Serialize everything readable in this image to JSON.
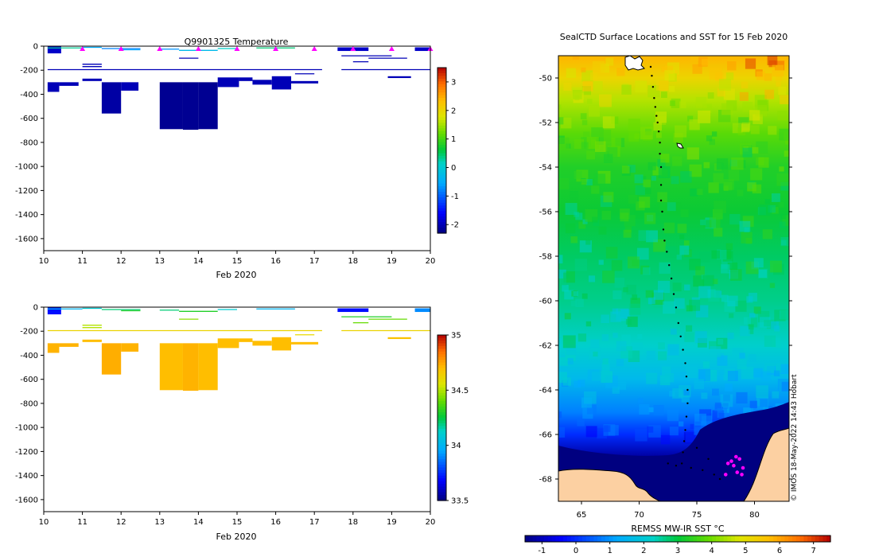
{
  "chart_data": [
    {
      "type": "heatmap",
      "title": "Q9901325  Temperature",
      "xlabel": "Feb 2020",
      "xlim": [
        10,
        20
      ],
      "ylim": [
        -1700,
        0
      ],
      "xticks": [
        10,
        11,
        12,
        13,
        14,
        15,
        16,
        17,
        18,
        19,
        20
      ],
      "yticks": [
        0,
        -200,
        -400,
        -600,
        -800,
        -1000,
        -1200,
        -1400,
        -1600
      ],
      "colorbar": {
        "min": -2.3,
        "max": 3.5,
        "ticks": [
          3,
          2,
          1,
          0,
          -1,
          -2
        ]
      },
      "surface_markers_days": [
        11,
        12,
        13,
        14,
        15,
        16,
        17,
        18,
        19,
        20
      ],
      "profiles": [
        {
          "x0": 10.1,
          "x1": 10.45,
          "top": 0,
          "bottom": -60,
          "value": -1.9
        },
        {
          "x0": 10.1,
          "x1": 10.4,
          "top": -300,
          "bottom": -380,
          "value": -2.0
        },
        {
          "x0": 10.4,
          "x1": 10.9,
          "top": -300,
          "bottom": -330,
          "value": -2.0
        },
        {
          "x0": 11.0,
          "x1": 11.5,
          "top": -270,
          "bottom": -290,
          "value": -2.0
        },
        {
          "x0": 11.5,
          "x1": 12.0,
          "top": -300,
          "bottom": -560,
          "value": -2.1
        },
        {
          "x0": 12.0,
          "x1": 12.45,
          "top": -300,
          "bottom": -370,
          "value": -2.0
        },
        {
          "x0": 13.0,
          "x1": 13.6,
          "top": -300,
          "bottom": -690,
          "value": -2.2
        },
        {
          "x0": 13.6,
          "x1": 14.0,
          "top": -300,
          "bottom": -695,
          "value": -2.2
        },
        {
          "x0": 14.0,
          "x1": 14.5,
          "top": -300,
          "bottom": -690,
          "value": -2.2
        },
        {
          "x0": 14.5,
          "x1": 15.05,
          "top": -260,
          "bottom": -340,
          "value": -2.0
        },
        {
          "x0": 15.05,
          "x1": 15.4,
          "top": -260,
          "bottom": -290,
          "value": -2.0
        },
        {
          "x0": 15.4,
          "x1": 15.9,
          "top": -280,
          "bottom": -320,
          "value": -2.0
        },
        {
          "x0": 15.9,
          "x1": 16.4,
          "top": -250,
          "bottom": -360,
          "value": -2.0
        },
        {
          "x0": 16.4,
          "x1": 17.1,
          "top": -290,
          "bottom": -310,
          "value": -2.0
        },
        {
          "x0": 17.6,
          "x1": 18.4,
          "top": -10,
          "bottom": -40,
          "value": -1.9
        },
        {
          "x0": 18.9,
          "x1": 19.5,
          "top": -250,
          "bottom": -265,
          "value": -2.0
        },
        {
          "x0": 19.6,
          "x1": 20.1,
          "top": -10,
          "bottom": -40,
          "value": -1.9
        }
      ],
      "levels": [
        {
          "x0": 10.1,
          "x1": 11.0,
          "depth": -15,
          "value": 0.3
        },
        {
          "x0": 11.0,
          "x1": 11.5,
          "depth": -10,
          "value": -0.5
        },
        {
          "x0": 11.5,
          "x1": 12.5,
          "depth": -20,
          "value": -0.8
        },
        {
          "x0": 12.0,
          "x1": 12.5,
          "depth": -30,
          "value": -0.6
        },
        {
          "x0": 13.0,
          "x1": 13.5,
          "depth": -25,
          "value": -0.7
        },
        {
          "x0": 13.5,
          "x1": 14.5,
          "depth": -35,
          "value": -0.3
        },
        {
          "x0": 14.5,
          "x1": 15.0,
          "depth": -20,
          "value": 0.1
        },
        {
          "x0": 15.5,
          "x1": 16.5,
          "depth": -15,
          "value": 0.4
        },
        {
          "x0": 11.0,
          "x1": 11.5,
          "depth": -150,
          "value": -2.0
        },
        {
          "x0": 11.0,
          "x1": 11.5,
          "depth": -170,
          "value": -2.0
        },
        {
          "x0": 13.5,
          "x1": 14.0,
          "depth": -100,
          "value": -2.0
        },
        {
          "x0": 16.5,
          "x1": 17.0,
          "depth": -230,
          "value": -2.0
        },
        {
          "x0": 17.7,
          "x1": 19.0,
          "depth": -80,
          "value": -2.0
        },
        {
          "x0": 18.0,
          "x1": 18.4,
          "depth": -130,
          "value": -2.0
        },
        {
          "x0": 18.4,
          "x1": 19.4,
          "depth": -100,
          "value": -2.0
        },
        {
          "x0": 10.1,
          "x1": 17.2,
          "depth": -195,
          "value": -2.0
        },
        {
          "x0": 17.7,
          "x1": 20.1,
          "depth": -195,
          "value": -2.0
        }
      ]
    },
    {
      "type": "heatmap",
      "title": "",
      "xlabel": "Feb 2020",
      "xlim": [
        10,
        20
      ],
      "ylim": [
        -1700,
        0
      ],
      "xticks": [
        10,
        11,
        12,
        13,
        14,
        15,
        16,
        17,
        18,
        19,
        20
      ],
      "yticks": [
        0,
        -200,
        -400,
        -600,
        -800,
        -1000,
        -1200,
        -1400,
        -1600
      ],
      "colorbar": {
        "min": 33.5,
        "max": 35.0,
        "ticks": [
          35,
          34.5,
          34,
          33.5
        ]
      },
      "profiles": [
        {
          "x0": 10.1,
          "x1": 10.45,
          "top": 0,
          "bottom": -60,
          "value": 33.7
        },
        {
          "x0": 10.1,
          "x1": 10.4,
          "top": -300,
          "bottom": -380,
          "value": 34.72
        },
        {
          "x0": 10.4,
          "x1": 10.9,
          "top": -300,
          "bottom": -330,
          "value": 34.72
        },
        {
          "x0": 11.0,
          "x1": 11.5,
          "top": -270,
          "bottom": -290,
          "value": 34.7
        },
        {
          "x0": 11.5,
          "x1": 12.0,
          "top": -300,
          "bottom": -560,
          "value": 34.73
        },
        {
          "x0": 12.0,
          "x1": 12.45,
          "top": -300,
          "bottom": -370,
          "value": 34.72
        },
        {
          "x0": 13.0,
          "x1": 13.6,
          "top": -300,
          "bottom": -690,
          "value": 34.7
        },
        {
          "x0": 13.6,
          "x1": 14.0,
          "top": -300,
          "bottom": -695,
          "value": 34.72
        },
        {
          "x0": 14.0,
          "x1": 14.5,
          "top": -300,
          "bottom": -690,
          "value": 34.7
        },
        {
          "x0": 14.5,
          "x1": 15.05,
          "top": -260,
          "bottom": -340,
          "value": 34.7
        },
        {
          "x0": 15.05,
          "x1": 15.4,
          "top": -260,
          "bottom": -290,
          "value": 34.7
        },
        {
          "x0": 15.4,
          "x1": 15.9,
          "top": -280,
          "bottom": -320,
          "value": 34.7
        },
        {
          "x0": 15.9,
          "x1": 16.4,
          "top": -250,
          "bottom": -360,
          "value": 34.7
        },
        {
          "x0": 16.4,
          "x1": 17.1,
          "top": -290,
          "bottom": -310,
          "value": 34.7
        },
        {
          "x0": 17.6,
          "x1": 18.4,
          "top": -10,
          "bottom": -40,
          "value": 33.7
        },
        {
          "x0": 18.9,
          "x1": 19.5,
          "top": -250,
          "bottom": -265,
          "value": 34.68
        },
        {
          "x0": 19.6,
          "x1": 20.1,
          "top": -10,
          "bottom": -40,
          "value": 33.9
        }
      ],
      "levels": [
        {
          "x0": 10.1,
          "x1": 11.0,
          "depth": -15,
          "value": 34.0
        },
        {
          "x0": 11.0,
          "x1": 11.5,
          "depth": -10,
          "value": 34.1
        },
        {
          "x0": 11.5,
          "x1": 12.5,
          "depth": -20,
          "value": 34.2
        },
        {
          "x0": 12.0,
          "x1": 12.5,
          "depth": -30,
          "value": 34.3
        },
        {
          "x0": 13.0,
          "x1": 13.5,
          "depth": -25,
          "value": 34.2
        },
        {
          "x0": 13.5,
          "x1": 14.5,
          "depth": -35,
          "value": 34.3
        },
        {
          "x0": 14.5,
          "x1": 15.0,
          "depth": -20,
          "value": 34.1
        },
        {
          "x0": 15.5,
          "x1": 16.5,
          "depth": -15,
          "value": 34.0
        },
        {
          "x0": 11.0,
          "x1": 11.5,
          "depth": -150,
          "value": 34.5
        },
        {
          "x0": 11.0,
          "x1": 11.5,
          "depth": -170,
          "value": 34.5
        },
        {
          "x0": 13.5,
          "x1": 14.0,
          "depth": -100,
          "value": 34.45
        },
        {
          "x0": 16.5,
          "x1": 17.0,
          "depth": -230,
          "value": 34.6
        },
        {
          "x0": 17.7,
          "x1": 19.0,
          "depth": -80,
          "value": 34.3
        },
        {
          "x0": 18.0,
          "x1": 18.4,
          "depth": -130,
          "value": 34.4
        },
        {
          "x0": 18.4,
          "x1": 19.4,
          "depth": -100,
          "value": 34.4
        },
        {
          "x0": 10.1,
          "x1": 17.2,
          "depth": -195,
          "value": 34.62
        },
        {
          "x0": 17.7,
          "x1": 20.1,
          "depth": -195,
          "value": 34.62
        }
      ]
    },
    {
      "type": "heatmap",
      "title": "SealCTD Surface Locations and SST for 15 Feb 2020",
      "xlabel": "",
      "ylabel": "",
      "xlim": [
        63,
        83
      ],
      "ylim": [
        -69,
        -49
      ],
      "xticks": [
        65,
        70,
        75,
        80
      ],
      "yticks": [
        -50,
        -52,
        -54,
        -56,
        -58,
        -60,
        -62,
        -64,
        -66,
        -68
      ],
      "colorbar": {
        "label": "REMSS MW-IR SST °C",
        "min": -1.5,
        "max": 7.5,
        "ticks": [
          -1,
          0,
          1,
          2,
          3,
          4,
          5,
          6,
          7
        ]
      },
      "sst_gradient": [
        {
          "lat": -49,
          "value": 5.8
        },
        {
          "lat": -50,
          "value": 5.2
        },
        {
          "lat": -51,
          "value": 4.5
        },
        {
          "lat": -52.5,
          "value": 3.8
        },
        {
          "lat": -54,
          "value": 3.3
        },
        {
          "lat": -56,
          "value": 3.1
        },
        {
          "lat": -58,
          "value": 2.8
        },
        {
          "lat": -60,
          "value": 2.6
        },
        {
          "lat": -62,
          "value": 2.2
        },
        {
          "lat": -63.5,
          "value": 1.6
        },
        {
          "lat": -65,
          "value": 0.8
        },
        {
          "lat": -66,
          "value": 0.0
        },
        {
          "lat": -67,
          "value": -1.2
        }
      ],
      "track_positions": [
        {
          "lon": 71.0,
          "lat": -49.5
        },
        {
          "lon": 71.1,
          "lat": -49.9
        },
        {
          "lon": 71.2,
          "lat": -50.4
        },
        {
          "lon": 71.3,
          "lat": -50.9
        },
        {
          "lon": 71.4,
          "lat": -51.3
        },
        {
          "lon": 71.5,
          "lat": -51.7
        },
        {
          "lon": 71.6,
          "lat": -52.0
        },
        {
          "lon": 71.7,
          "lat": -52.4
        },
        {
          "lon": 71.8,
          "lat": -52.9
        },
        {
          "lon": 71.8,
          "lat": -53.4
        },
        {
          "lon": 71.9,
          "lat": -54.0
        },
        {
          "lon": 71.9,
          "lat": -54.8
        },
        {
          "lon": 71.9,
          "lat": -55.5
        },
        {
          "lon": 72.0,
          "lat": -56.0
        },
        {
          "lon": 72.1,
          "lat": -56.8
        },
        {
          "lon": 72.2,
          "lat": -57.3
        },
        {
          "lon": 72.4,
          "lat": -57.8
        },
        {
          "lon": 72.6,
          "lat": -58.4
        },
        {
          "lon": 72.8,
          "lat": -59.0
        },
        {
          "lon": 73.0,
          "lat": -59.7
        },
        {
          "lon": 73.2,
          "lat": -60.3
        },
        {
          "lon": 73.4,
          "lat": -61.0
        },
        {
          "lon": 73.6,
          "lat": -61.6
        },
        {
          "lon": 73.8,
          "lat": -62.2
        },
        {
          "lon": 74.0,
          "lat": -62.8
        },
        {
          "lon": 74.1,
          "lat": -63.4
        },
        {
          "lon": 74.2,
          "lat": -64.0
        },
        {
          "lon": 74.2,
          "lat": -64.6
        },
        {
          "lon": 74.1,
          "lat": -65.2
        },
        {
          "lon": 74.0,
          "lat": -65.8
        },
        {
          "lon": 73.9,
          "lat": -66.3
        },
        {
          "lon": 73.8,
          "lat": -66.8
        },
        {
          "lon": 73.7,
          "lat": -67.3
        },
        {
          "lon": 74.5,
          "lat": -67.5
        },
        {
          "lon": 75.5,
          "lat": -67.6
        },
        {
          "lon": 76.5,
          "lat": -67.8
        },
        {
          "lon": 77.0,
          "lat": -68.0
        },
        {
          "lon": 76.0,
          "lat": -67.1
        },
        {
          "lon": 75.0,
          "lat": -66.6
        },
        {
          "lon": 72.5,
          "lat": -67.3
        },
        {
          "lon": 73.2,
          "lat": -67.4
        }
      ],
      "current_positions": [
        {
          "lon": 77.7,
          "lat": -67.3
        },
        {
          "lon": 78.0,
          "lat": -67.2
        },
        {
          "lon": 78.4,
          "lat": -67.0
        },
        {
          "lon": 78.7,
          "lat": -67.1
        },
        {
          "lon": 78.2,
          "lat": -67.4
        },
        {
          "lon": 79.0,
          "lat": -67.5
        },
        {
          "lon": 78.5,
          "lat": -67.7
        },
        {
          "lon": 78.9,
          "lat": -67.8
        },
        {
          "lon": 77.5,
          "lat": -67.8
        }
      ],
      "credit": "© IMOS 18-May-2022 14:43 Hobart"
    }
  ]
}
